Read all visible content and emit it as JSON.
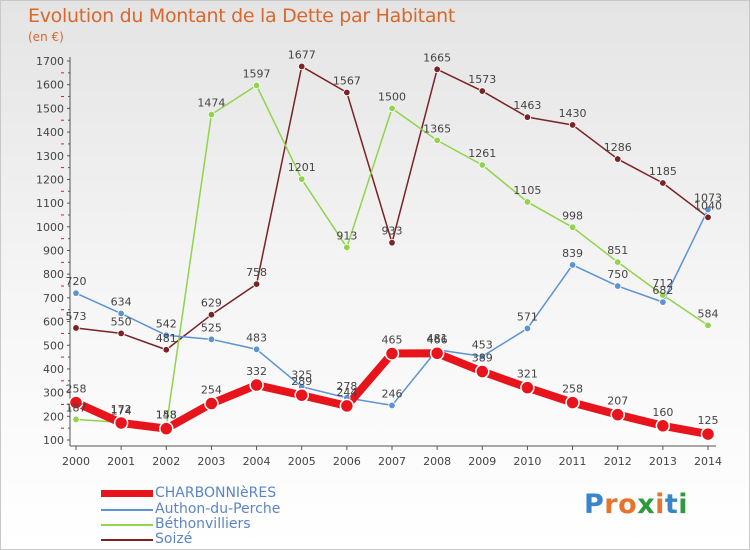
{
  "title": "Evolution du Montant de la Dette par Habitant",
  "unit": "(en €)",
  "logo": {
    "letters": [
      "P",
      "r",
      "o",
      "x",
      "i",
      "t",
      "i"
    ],
    "colors": [
      "#3a84c9",
      "#e8732e",
      "#e8732e",
      "#2f9a3c",
      "#e8732e",
      "#3a84c9",
      "#2f9a3c"
    ]
  },
  "chart_data": {
    "type": "line",
    "title": "Evolution du Montant de la Dette par Habitant",
    "ylabel": "(en €)",
    "xlabel": "",
    "x": [
      "2000",
      "2001",
      "2002",
      "2003",
      "2004",
      "2005",
      "2006",
      "2007",
      "2008",
      "2009",
      "2010",
      "2011",
      "2012",
      "2013",
      "2014"
    ],
    "ylim": [
      100,
      1700
    ],
    "yticks": [
      100,
      200,
      300,
      400,
      500,
      600,
      700,
      800,
      900,
      1000,
      1100,
      1200,
      1300,
      1400,
      1500,
      1600,
      1700
    ],
    "grid": false,
    "legend_position": "bottom-left",
    "series": [
      {
        "name": "CHARBONNIèRES",
        "color": "#e8141b",
        "emphasis": true,
        "values": [
          258,
          172,
          148,
          254,
          332,
          289,
          244,
          465,
          466,
          389,
          321,
          258,
          207,
          160,
          125
        ],
        "labels": [
          "258",
          "172",
          "148",
          "254",
          "332",
          "289",
          "244",
          "465",
          "466",
          "389",
          "321",
          "258",
          "207",
          "160",
          "125"
        ]
      },
      {
        "name": "Authon-du-Perche",
        "color": "#5b93d3",
        "emphasis": false,
        "values": [
          720,
          634,
          542,
          525,
          483,
          325,
          278,
          246,
          481,
          453,
          571,
          839,
          750,
          682,
          1073
        ],
        "labels": [
          "720",
          "634",
          "542",
          "525",
          "483",
          "325",
          "278",
          "246",
          "481",
          "453",
          "571",
          "839",
          "750",
          "682",
          "1073"
        ]
      },
      {
        "name": "Béthonvilliers",
        "color": "#8fd44a",
        "emphasis": false,
        "values": [
          187,
          174,
          158,
          1474,
          1597,
          1201,
          913,
          1500,
          1365,
          1261,
          1105,
          998,
          851,
          712,
          584
        ],
        "labels": [
          "187",
          "174",
          "158",
          "1474",
          "1597",
          "1201",
          "913",
          "1500",
          "1365",
          "1261",
          "1105",
          "998",
          "851",
          "712",
          "584"
        ]
      },
      {
        "name": "Soizé",
        "color": "#7a2224",
        "emphasis": false,
        "values": [
          573,
          550,
          481,
          629,
          758,
          1677,
          1567,
          933,
          1665,
          1573,
          1463,
          1430,
          1286,
          1185,
          1040
        ],
        "labels": [
          "573",
          "550",
          "481",
          "629",
          "758",
          "1677",
          "1567",
          "933",
          "1665",
          "1573",
          "1463",
          "1430",
          "1286",
          "1185",
          "1040"
        ]
      }
    ]
  }
}
